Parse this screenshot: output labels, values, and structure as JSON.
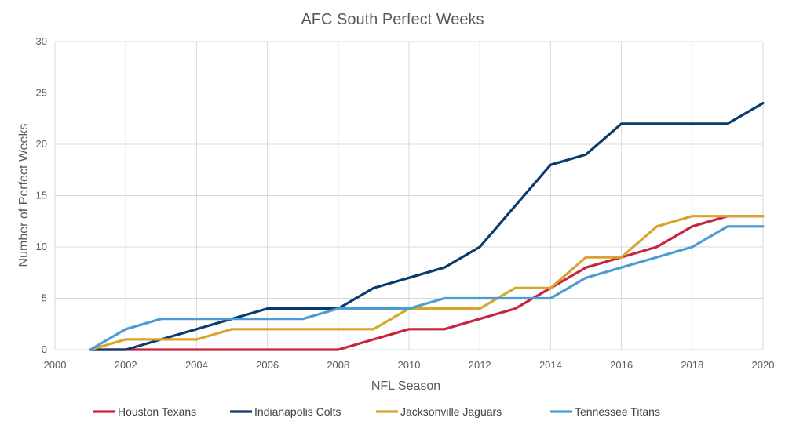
{
  "chart_data": {
    "type": "line",
    "title": "AFC South Perfect Weeks",
    "xlabel": "NFL Season",
    "ylabel": "Number of Perfect Weeks",
    "xlim": [
      2000,
      2020
    ],
    "ylim": [
      0,
      30
    ],
    "x_ticks": [
      2000,
      2002,
      2004,
      2006,
      2008,
      2010,
      2012,
      2014,
      2016,
      2018,
      2020
    ],
    "y_ticks": [
      0,
      5,
      10,
      15,
      20,
      25,
      30
    ],
    "grid": "vertical and horizontal",
    "legend_position": "bottom",
    "x": [
      2001,
      2002,
      2003,
      2004,
      2005,
      2006,
      2007,
      2008,
      2009,
      2010,
      2011,
      2012,
      2013,
      2014,
      2015,
      2016,
      2017,
      2018,
      2019,
      2020
    ],
    "series": [
      {
        "name": "Houston Texans",
        "color": "#c8243f",
        "values": [
          0,
          0,
          0,
          0,
          0,
          0,
          0,
          0,
          1,
          2,
          2,
          3,
          4,
          6,
          8,
          9,
          10,
          12,
          13,
          13
        ]
      },
      {
        "name": "Indianapolis Colts",
        "color": "#0b3a6e",
        "values": [
          0,
          0,
          1,
          2,
          3,
          4,
          4,
          4,
          6,
          7,
          8,
          10,
          14,
          18,
          19,
          22,
          22,
          22,
          22,
          24
        ]
      },
      {
        "name": "Jacksonville Jaguars",
        "color": "#d8a42c",
        "values": [
          0,
          1,
          1,
          1,
          2,
          2,
          2,
          2,
          2,
          4,
          4,
          4,
          6,
          6,
          9,
          9,
          12,
          13,
          13,
          13
        ]
      },
      {
        "name": "Tennessee Titans",
        "color": "#4b9cd3",
        "values": [
          0,
          2,
          3,
          3,
          3,
          3,
          3,
          4,
          4,
          4,
          5,
          5,
          5,
          5,
          7,
          8,
          9,
          10,
          12,
          12
        ]
      }
    ]
  }
}
